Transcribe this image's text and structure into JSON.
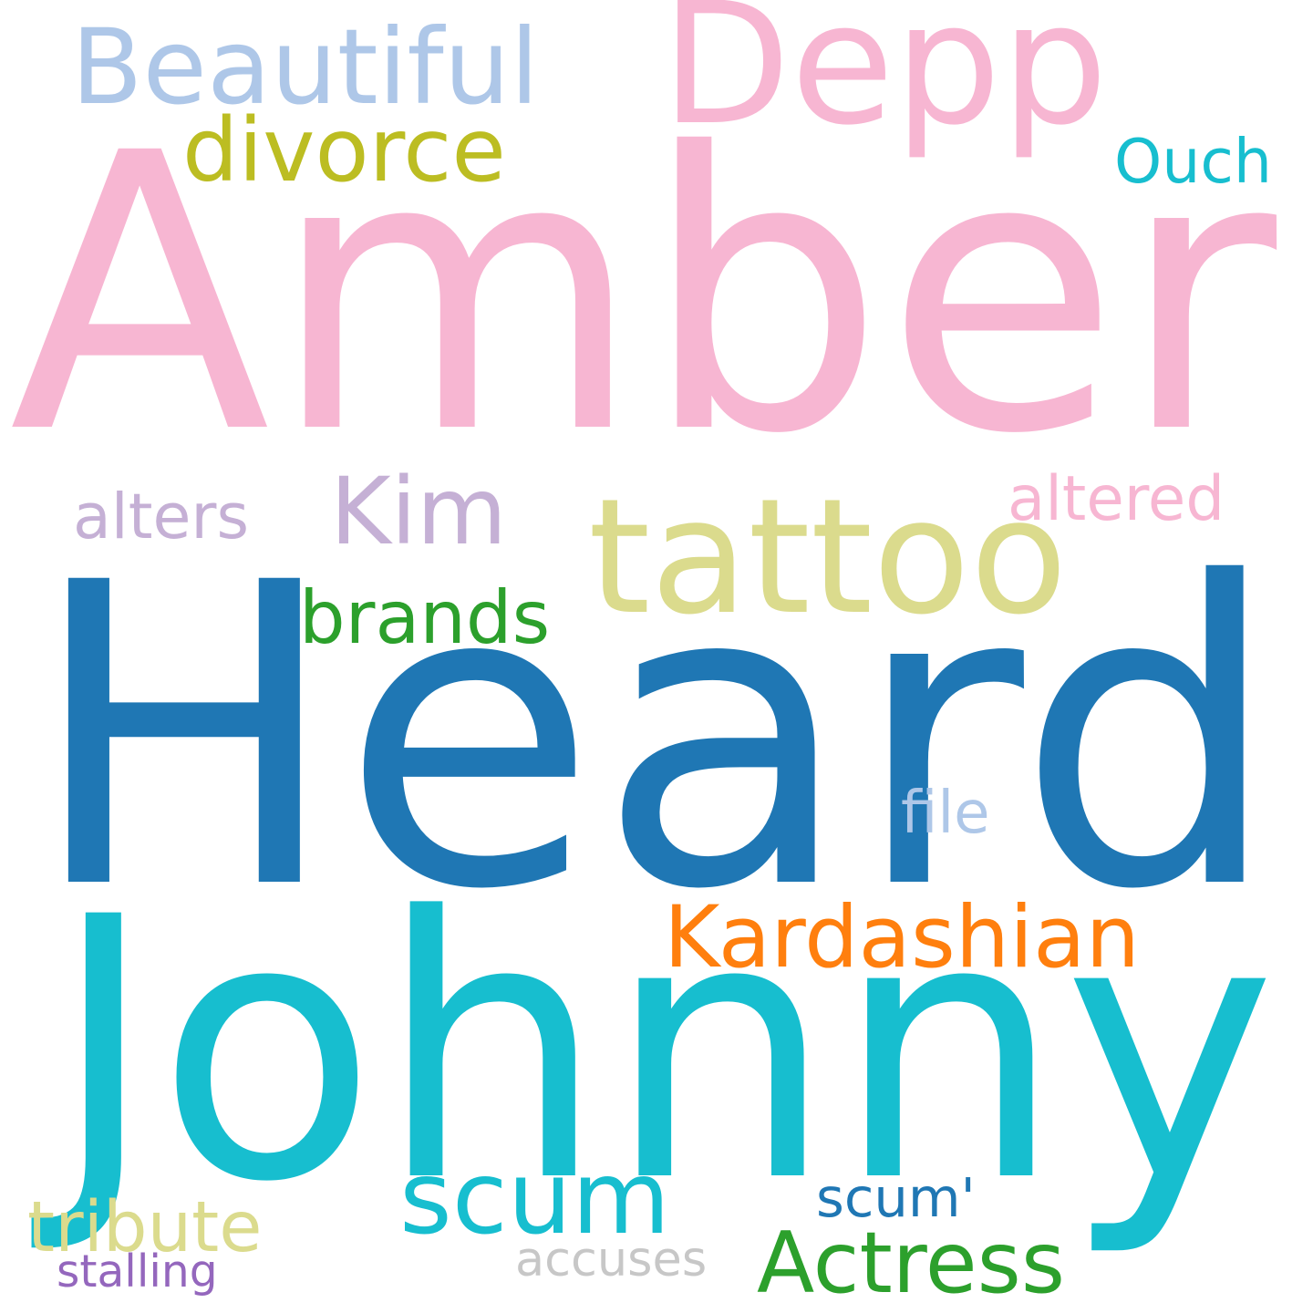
{
  "words": [
    {
      "text": "Amber",
      "color": "#f7b6d2"
    },
    {
      "text": "Heard",
      "color": "#1f77b4"
    },
    {
      "text": "Johnny",
      "color": "#17becf"
    },
    {
      "text": "Depp",
      "color": "#f7b6d2"
    },
    {
      "text": "Beautiful",
      "color": "#aec7e8"
    },
    {
      "text": "tattoo",
      "color": "#dbdb8d"
    },
    {
      "text": "divorce",
      "color": "#bcbd22"
    },
    {
      "text": "Ouch",
      "color": "#17becf"
    },
    {
      "text": "alters",
      "color": "#c5b0d5"
    },
    {
      "text": "Kim",
      "color": "#c5b0d5"
    },
    {
      "text": "altered",
      "color": "#f7b6d2"
    },
    {
      "text": "brands",
      "color": "#2ca02c"
    },
    {
      "text": "file",
      "color": "#aec7e8"
    },
    {
      "text": "Kardashian",
      "color": "#ff7f0e"
    },
    {
      "text": "scum",
      "color": "#17becf"
    },
    {
      "text": "scum'",
      "color": "#1f77b4"
    },
    {
      "text": "tribute",
      "color": "#dbdb8d"
    },
    {
      "text": "Actress",
      "color": "#2ca02c"
    },
    {
      "text": "stalling",
      "color": "#9467bd"
    },
    {
      "text": "accuses",
      "color": "#c7c7c7"
    }
  ]
}
